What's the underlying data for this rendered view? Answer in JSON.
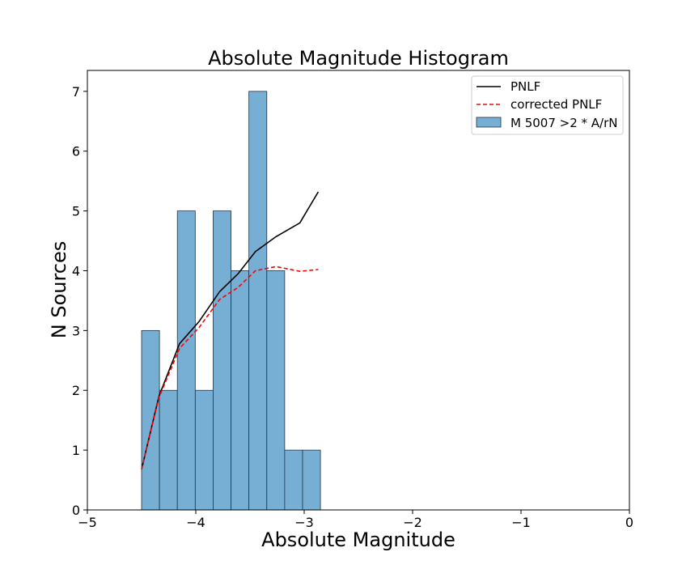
{
  "chart_data": {
    "type": "histogram",
    "title": "Absolute Magnitude Histogram",
    "xlabel": "Absolute Magnitude",
    "ylabel": "N Sources",
    "xlim": [
      -5,
      0
    ],
    "ylim": [
      0,
      7.35
    ],
    "grid": false,
    "legend_position": "top-right",
    "x_ticks": [
      -5,
      -4,
      -3,
      -2,
      -1,
      0
    ],
    "x_tick_labels": [
      "−5",
      "−4",
      "−3",
      "−2",
      "−1",
      "0"
    ],
    "y_ticks": [
      0,
      1,
      2,
      3,
      4,
      5,
      6,
      7
    ],
    "y_tick_labels": [
      "0",
      "1",
      "2",
      "3",
      "4",
      "5",
      "6",
      "7"
    ],
    "histogram": {
      "name": "M 5007 >2 * A/rN",
      "color": "#77aed3",
      "edge_color": "#1f3447",
      "bin_edges": [
        -4.5,
        -4.335,
        -4.17,
        -4.005,
        -3.84,
        -3.675,
        -3.51,
        -3.345,
        -3.18,
        -3.015,
        -2.85
      ],
      "counts": [
        3,
        2,
        5,
        2,
        5,
        4,
        7,
        4,
        1,
        1
      ]
    },
    "series": [
      {
        "name": "PNLF",
        "color": "#000000",
        "style": "solid",
        "x": [
          -4.5,
          -4.34,
          -4.15,
          -3.97,
          -3.78,
          -3.61,
          -3.45,
          -3.26,
          -3.04,
          -2.87
        ],
        "y": [
          0.68,
          1.9,
          2.78,
          3.15,
          3.65,
          3.95,
          4.32,
          4.57,
          4.8,
          5.32
        ]
      },
      {
        "name": "corrected PNLF",
        "color": "#ff0000",
        "style": "dashed",
        "x": [
          -4.5,
          -4.34,
          -4.15,
          -3.97,
          -3.78,
          -3.61,
          -3.45,
          -3.26,
          -3.04,
          -2.87
        ],
        "y": [
          0.68,
          1.88,
          2.7,
          3.05,
          3.52,
          3.72,
          4.0,
          4.07,
          3.99,
          4.02
        ]
      }
    ]
  }
}
